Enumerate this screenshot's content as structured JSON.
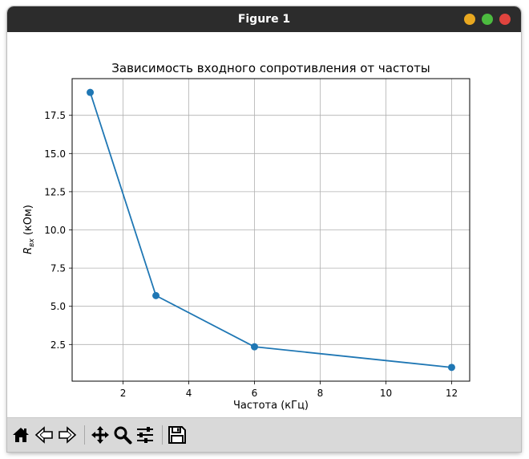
{
  "window": {
    "title": "Figure 1",
    "controls": {
      "minimize_color": "#e9a820",
      "maximize_color": "#4cbb3f",
      "close_color": "#e0443e"
    }
  },
  "toolbar": {
    "buttons": [
      "home-icon",
      "back-icon",
      "forward-icon",
      "pan-icon",
      "zoom-icon",
      "configure-subplots-icon",
      "save-icon"
    ]
  },
  "chart_data": {
    "type": "line",
    "title": "Зависимость входного сопротивления от частоты",
    "xlabel": "Частота (кГц)",
    "ylabel_main": "R",
    "ylabel_sub": "вх",
    "ylabel_unit": "(кОм)",
    "x": [
      1,
      3,
      6,
      12
    ],
    "series": [
      {
        "values": [
          19.0,
          5.7,
          2.35,
          1.0
        ],
        "color": "#1f77b4",
        "marker": "circle"
      }
    ],
    "xlim": [
      0.45,
      12.55
    ],
    "ylim": [
      0.1,
      19.9
    ],
    "xticks": [
      2,
      4,
      6,
      8,
      10,
      12
    ],
    "yticks": [
      2.5,
      5.0,
      7.5,
      10.0,
      12.5,
      15.0,
      17.5
    ],
    "xtick_labels": [
      "2",
      "4",
      "6",
      "8",
      "10",
      "12"
    ],
    "ytick_labels": [
      "2.5",
      "5.0",
      "7.5",
      "10.0",
      "12.5",
      "15.0",
      "17.5"
    ],
    "grid": true
  }
}
